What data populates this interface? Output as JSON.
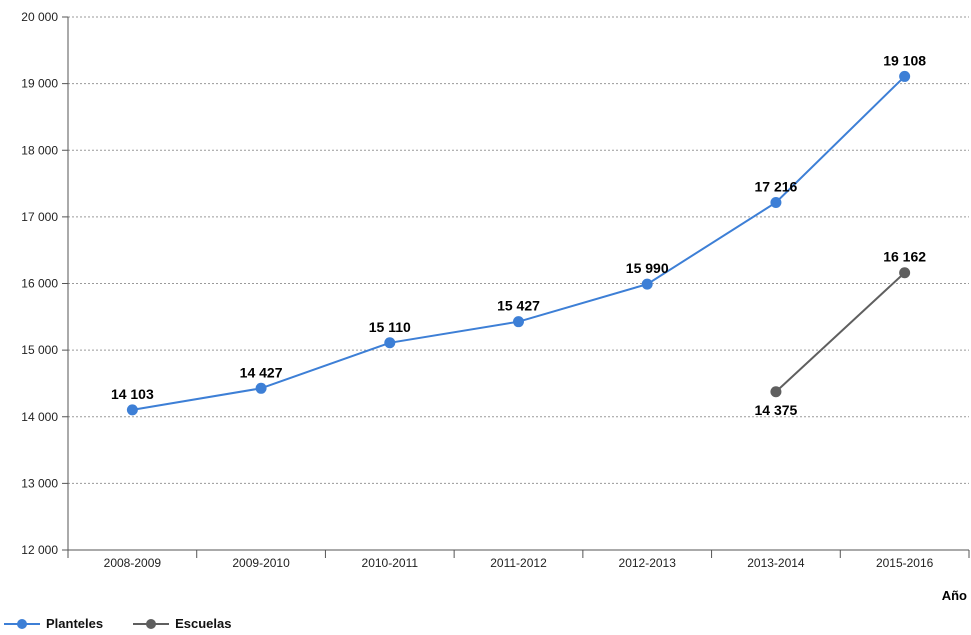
{
  "chart_data": {
    "type": "line",
    "categories": [
      "2008-2009",
      "2009-2010",
      "2010-2011",
      "2011-2012",
      "2012-2013",
      "2013-2014",
      "2015-2016"
    ],
    "series": [
      {
        "name": "Planteles",
        "color": "#3d7fd6",
        "values": [
          14103,
          14427,
          15110,
          15427,
          15990,
          17216,
          19108
        ],
        "labels": [
          "14 103",
          "14 427",
          "15 110",
          "15 427",
          "15 990",
          "17 216",
          "19 108"
        ]
      },
      {
        "name": "Escuelas",
        "color": "#5f5f5f",
        "values": [
          null,
          null,
          null,
          null,
          null,
          14375,
          16162
        ],
        "labels": [
          "",
          "",
          "",
          "",
          "",
          "14 375",
          "16 162"
        ]
      }
    ],
    "yticks": [
      12000,
      13000,
      14000,
      15000,
      16000,
      17000,
      18000,
      19000,
      20000
    ],
    "ytick_labels": [
      "12 000",
      "13 000",
      "14 000",
      "15 000",
      "16 000",
      "17 000",
      "18 000",
      "19 000",
      "20 000"
    ],
    "ylim": [
      12000,
      20000
    ],
    "xlabel": "Año",
    "ylabel": "",
    "grid": "horizontal-dashed",
    "legend": "bottom-left"
  }
}
